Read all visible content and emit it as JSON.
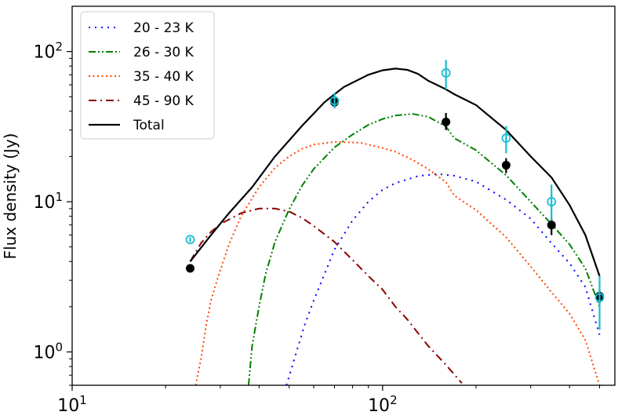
{
  "chart_data": {
    "type": "line",
    "xscale": "log",
    "yscale": "log",
    "xlim": [
      10,
      560
    ],
    "ylim": [
      0.6,
      200
    ],
    "ylabel": "Flux density (Jy)",
    "x_ticks": [
      {
        "value": 10,
        "base": "10",
        "exp": "1"
      },
      {
        "value": 100,
        "base": "10",
        "exp": "2"
      }
    ],
    "y_ticks": [
      {
        "value": 1,
        "base": "10",
        "exp": "0"
      },
      {
        "value": 10,
        "base": "10",
        "exp": "1"
      },
      {
        "value": 100,
        "base": "10",
        "exp": "2"
      }
    ],
    "legend_position": "upper-left",
    "series": [
      {
        "name": "20 - 23 K",
        "color": "#0000ff",
        "style": "dotted",
        "x": [
          49,
          52,
          56,
          60,
          65,
          70,
          80,
          90,
          100,
          110,
          130,
          150,
          170,
          200,
          250,
          300,
          350,
          400,
          450,
          500
        ],
        "y": [
          0.6,
          0.9,
          1.5,
          2.2,
          3.3,
          4.8,
          7.5,
          10.0,
          12.0,
          13.3,
          14.8,
          15.3,
          14.9,
          13.6,
          10.3,
          7.7,
          5.3,
          3.9,
          2.7,
          1.3
        ]
      },
      {
        "name": "26 - 30 K",
        "color": "#008000",
        "style": "dash-dot-dot",
        "x": [
          37,
          38,
          40,
          42,
          45,
          50,
          55,
          60,
          70,
          80,
          90,
          100,
          110,
          125,
          140,
          160,
          170,
          200,
          250,
          300,
          350,
          400,
          450,
          500
        ],
        "y": [
          0.6,
          1.1,
          2.0,
          3.3,
          5.4,
          8.9,
          12.8,
          16.5,
          23.0,
          28.0,
          32.5,
          35.5,
          37.5,
          38.4,
          36.8,
          31.7,
          26.5,
          22.0,
          15.0,
          10.0,
          7.1,
          5.2,
          3.6,
          2.0
        ]
      },
      {
        "name": "35 - 40 K",
        "color": "#ff4500",
        "style": "dotted",
        "x": [
          25,
          26,
          27,
          28,
          29,
          30,
          32,
          35,
          40,
          45,
          50,
          55,
          60,
          70,
          80,
          85,
          90,
          100,
          110,
          125,
          140,
          160,
          170,
          200,
          250,
          300,
          350,
          400,
          450,
          500
        ],
        "y": [
          0.6,
          0.9,
          1.5,
          2.2,
          2.8,
          3.5,
          5.2,
          8.0,
          12.5,
          16.8,
          20.0,
          22.5,
          24.0,
          25.0,
          24.8,
          24.7,
          24.0,
          22.8,
          21.5,
          19.0,
          16.5,
          13.5,
          11.0,
          8.8,
          5.8,
          3.7,
          2.5,
          1.8,
          1.2,
          0.6
        ]
      },
      {
        "name": "45 - 90 K",
        "color": "#8b0000",
        "style": "dash-dot",
        "x": [
          24,
          26,
          28,
          30,
          35,
          40,
          45,
          50,
          55,
          60,
          70,
          80,
          90,
          100,
          110,
          120,
          140,
          160,
          180
        ],
        "y": [
          4.0,
          5.3,
          6.3,
          7.1,
          8.4,
          9.0,
          9.0,
          8.6,
          7.8,
          6.9,
          5.4,
          4.1,
          3.2,
          2.6,
          2.0,
          1.65,
          1.1,
          0.82,
          0.62
        ]
      },
      {
        "name": "Total",
        "color": "#000000",
        "style": "solid",
        "x": [
          24,
          28,
          32,
          38,
          45,
          55,
          65,
          75,
          90,
          100,
          110,
          120,
          130,
          140,
          160,
          170,
          200,
          250,
          300,
          350,
          400,
          450,
          500
        ],
        "y": [
          4.0,
          6.0,
          8.4,
          12.5,
          20.0,
          32.0,
          46.0,
          58.0,
          70.0,
          75.0,
          77.0,
          75.5,
          71.0,
          64.0,
          56.0,
          52.0,
          44.0,
          30.0,
          20.0,
          14.5,
          9.5,
          6.0,
          3.2
        ]
      }
    ],
    "points_filled": [
      {
        "x": 24,
        "y": 3.6,
        "yerr_low": 3.4,
        "yerr_high": 3.8
      },
      {
        "x": 70,
        "y": 46,
        "yerr_low": 42,
        "yerr_high": 50
      },
      {
        "x": 160,
        "y": 34,
        "yerr_low": 30,
        "yerr_high": 39
      },
      {
        "x": 250,
        "y": 17.5,
        "yerr_low": 15.5,
        "yerr_high": 19.5
      },
      {
        "x": 350,
        "y": 7.0,
        "yerr_low": 6.0,
        "yerr_high": 7.8
      },
      {
        "x": 500,
        "y": 2.35,
        "yerr_low": 2.1,
        "yerr_high": 2.6
      }
    ],
    "points_open": [
      {
        "x": 24,
        "y": 5.6,
        "yerr_low": 5.4,
        "yerr_high": 5.8
      },
      {
        "x": 70,
        "y": 47,
        "yerr_low": 42,
        "yerr_high": 53
      },
      {
        "x": 160,
        "y": 72,
        "yerr_low": 56,
        "yerr_high": 88
      },
      {
        "x": 250,
        "y": 26.5,
        "yerr_low": 21,
        "yerr_high": 32
      },
      {
        "x": 350,
        "y": 10.0,
        "yerr_low": 7.5,
        "yerr_high": 13.0
      },
      {
        "x": 500,
        "y": 2.3,
        "yerr_low": 1.4,
        "yerr_high": 3.2
      }
    ],
    "colors": {
      "filled_points": "#000000",
      "open_points": "#17becf"
    }
  }
}
